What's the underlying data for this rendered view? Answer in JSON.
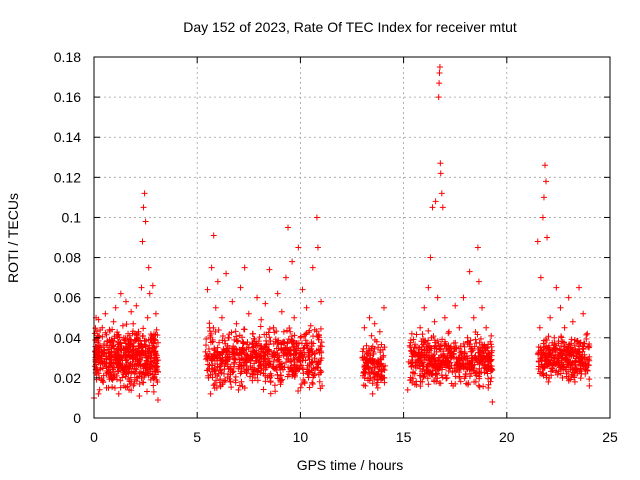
{
  "chart_data": {
    "type": "scatter",
    "title": "Day 152 of 2023, Rate Of TEC Index for receiver mtut",
    "xlabel": "GPS time / hours",
    "ylabel": "ROTI / TECUs",
    "xlim": [
      0,
      25
    ],
    "ylim": [
      0,
      0.18
    ],
    "xticks": [
      0,
      5,
      10,
      15,
      20,
      25
    ],
    "yticks": [
      0,
      0.02,
      0.04,
      0.06,
      0.08,
      0.1,
      0.12,
      0.14,
      0.16,
      0.18
    ],
    "xtick_labels": [
      "0",
      "5",
      "10",
      "15",
      "20",
      "25"
    ],
    "ytick_labels": [
      "0",
      "0.02",
      "0.04",
      "0.06",
      "0.08",
      "0.1",
      "0.12",
      "0.14",
      "0.16",
      "0.18"
    ],
    "grid": true,
    "marker": "+",
    "color": "#ff0000",
    "series": [
      {
        "points": [
          [
            0.0,
            0.01
          ],
          [
            0.05,
            0.033
          ],
          [
            0.1,
            0.05
          ],
          [
            0.15,
            0.024
          ],
          [
            0.2,
            0.041
          ],
          [
            0.25,
            0.02
          ],
          [
            0.3,
            0.036
          ],
          [
            0.35,
            0.028
          ],
          [
            0.4,
            0.045
          ],
          [
            0.45,
            0.018
          ],
          [
            0.5,
            0.032
          ],
          [
            0.55,
            0.052
          ],
          [
            0.6,
            0.022
          ],
          [
            0.65,
            0.038
          ],
          [
            0.7,
            0.015
          ],
          [
            0.75,
            0.044
          ],
          [
            0.8,
            0.027
          ],
          [
            0.85,
            0.035
          ],
          [
            0.9,
            0.019
          ],
          [
            0.95,
            0.048
          ],
          [
            1.0,
            0.03
          ],
          [
            1.05,
            0.055
          ],
          [
            1.1,
            0.021
          ],
          [
            1.15,
            0.04
          ],
          [
            1.2,
            0.012
          ],
          [
            1.25,
            0.037
          ],
          [
            1.3,
            0.062
          ],
          [
            1.35,
            0.025
          ],
          [
            1.4,
            0.046
          ],
          [
            1.45,
            0.016
          ],
          [
            1.5,
            0.034
          ],
          [
            1.55,
            0.058
          ],
          [
            1.6,
            0.023
          ],
          [
            1.65,
            0.042
          ],
          [
            1.7,
            0.014
          ],
          [
            1.75,
            0.039
          ],
          [
            1.8,
            0.053
          ],
          [
            1.85,
            0.026
          ],
          [
            1.9,
            0.047
          ],
          [
            1.95,
            0.017
          ],
          [
            2.0,
            0.031
          ],
          [
            2.05,
            0.056
          ],
          [
            2.1,
            0.02
          ],
          [
            2.15,
            0.043
          ],
          [
            2.2,
            0.011
          ],
          [
            2.25,
            0.036
          ],
          [
            2.3,
            0.065
          ],
          [
            2.35,
            0.088
          ],
          [
            2.4,
            0.105
          ],
          [
            2.45,
            0.112
          ],
          [
            2.5,
            0.098
          ],
          [
            2.55,
            0.028
          ],
          [
            2.6,
            0.05
          ],
          [
            2.65,
            0.075
          ],
          [
            2.7,
            0.062
          ],
          [
            2.75,
            0.019
          ],
          [
            2.8,
            0.041
          ],
          [
            2.85,
            0.066
          ],
          [
            2.9,
            0.013
          ],
          [
            2.95,
            0.033
          ],
          [
            3.0,
            0.052
          ],
          [
            3.05,
            0.024
          ],
          [
            3.1,
            0.009
          ],
          [
            5.4,
            0.033
          ],
          [
            5.5,
            0.064
          ],
          [
            5.55,
            0.02
          ],
          [
            5.6,
            0.045
          ],
          [
            5.65,
            0.012
          ],
          [
            5.7,
            0.075
          ],
          [
            5.75,
            0.038
          ],
          [
            5.8,
            0.091
          ],
          [
            5.85,
            0.025
          ],
          [
            5.9,
            0.055
          ],
          [
            5.95,
            0.015
          ],
          [
            6.0,
            0.068
          ],
          [
            6.1,
            0.03
          ],
          [
            6.2,
            0.05
          ],
          [
            6.3,
            0.022
          ],
          [
            6.4,
            0.072
          ],
          [
            6.5,
            0.04
          ],
          [
            6.6,
            0.018
          ],
          [
            6.7,
            0.058
          ],
          [
            6.8,
            0.027
          ],
          [
            6.9,
            0.047
          ],
          [
            7.0,
            0.014
          ],
          [
            7.1,
            0.065
          ],
          [
            7.2,
            0.035
          ],
          [
            7.3,
            0.075
          ],
          [
            7.4,
            0.024
          ],
          [
            7.5,
            0.052
          ],
          [
            7.6,
            0.03
          ],
          [
            7.7,
            0.042
          ],
          [
            7.8,
            0.02
          ],
          [
            7.9,
            0.06
          ],
          [
            8.0,
            0.036
          ],
          [
            8.1,
            0.049
          ],
          [
            8.2,
            0.026
          ],
          [
            8.3,
            0.057
          ],
          [
            8.4,
            0.032
          ],
          [
            8.5,
            0.074
          ],
          [
            8.6,
            0.021
          ],
          [
            8.7,
            0.045
          ],
          [
            8.8,
            0.038
          ],
          [
            8.9,
            0.062
          ],
          [
            9.0,
            0.028
          ],
          [
            9.1,
            0.053
          ],
          [
            9.2,
            0.043
          ],
          [
            9.3,
            0.07
          ],
          [
            9.4,
            0.095
          ],
          [
            9.5,
            0.034
          ],
          [
            9.6,
            0.078
          ],
          [
            9.7,
            0.05
          ],
          [
            9.8,
            0.025
          ],
          [
            9.9,
            0.085
          ],
          [
            10.0,
            0.04
          ],
          [
            10.1,
            0.064
          ],
          [
            10.2,
            0.018
          ],
          [
            10.3,
            0.055
          ],
          [
            10.4,
            0.031
          ],
          [
            10.5,
            0.046
          ],
          [
            10.6,
            0.075
          ],
          [
            10.7,
            0.022
          ],
          [
            10.8,
            0.1
          ],
          [
            10.85,
            0.085
          ],
          [
            10.9,
            0.041
          ],
          [
            11.0,
            0.058
          ],
          [
            11.05,
            0.016
          ],
          [
            13.0,
            0.03
          ],
          [
            13.1,
            0.045
          ],
          [
            13.15,
            0.016
          ],
          [
            13.2,
            0.036
          ],
          [
            13.3,
            0.025
          ],
          [
            13.35,
            0.05
          ],
          [
            13.4,
            0.02
          ],
          [
            13.45,
            0.041
          ],
          [
            13.5,
            0.012
          ],
          [
            13.55,
            0.032
          ],
          [
            13.6,
            0.047
          ],
          [
            13.65,
            0.022
          ],
          [
            13.7,
            0.038
          ],
          [
            13.75,
            0.015
          ],
          [
            13.8,
            0.028
          ],
          [
            13.85,
            0.043
          ],
          [
            13.9,
            0.019
          ],
          [
            14.0,
            0.034
          ],
          [
            14.05,
            0.055
          ],
          [
            14.1,
            0.026
          ],
          [
            15.2,
            0.014
          ],
          [
            15.25,
            0.028
          ],
          [
            15.3,
            0.036
          ],
          [
            15.35,
            0.019
          ],
          [
            15.4,
            0.042
          ],
          [
            15.6,
            0.025
          ],
          [
            15.7,
            0.035
          ],
          [
            15.8,
            0.045
          ],
          [
            15.9,
            0.018
          ],
          [
            16.0,
            0.055
          ],
          [
            16.1,
            0.03
          ],
          [
            16.2,
            0.065
          ],
          [
            16.25,
            0.022
          ],
          [
            16.3,
            0.08
          ],
          [
            16.35,
            0.04
          ],
          [
            16.4,
            0.105
          ],
          [
            16.45,
            0.026
          ],
          [
            16.5,
            0.048
          ],
          [
            16.55,
            0.108
          ],
          [
            16.6,
            0.033
          ],
          [
            16.65,
            0.06
          ],
          [
            16.7,
            0.16
          ],
          [
            16.72,
            0.167
          ],
          [
            16.74,
            0.172
          ],
          [
            16.76,
            0.175
          ],
          [
            16.78,
            0.127
          ],
          [
            16.8,
            0.122
          ],
          [
            16.85,
            0.112
          ],
          [
            16.9,
            0.105
          ],
          [
            16.95,
            0.028
          ],
          [
            17.0,
            0.05
          ],
          [
            17.1,
            0.02
          ],
          [
            17.2,
            0.043
          ],
          [
            17.3,
            0.035
          ],
          [
            17.4,
            0.016
          ],
          [
            17.5,
            0.056
          ],
          [
            17.6,
            0.026
          ],
          [
            17.7,
            0.045
          ],
          [
            17.8,
            0.032
          ],
          [
            17.9,
            0.06
          ],
          [
            18.0,
            0.022
          ],
          [
            18.1,
            0.04
          ],
          [
            18.2,
            0.073
          ],
          [
            18.3,
            0.03
          ],
          [
            18.4,
            0.05
          ],
          [
            18.5,
            0.018
          ],
          [
            18.6,
            0.085
          ],
          [
            18.65,
            0.068
          ],
          [
            18.7,
            0.035
          ],
          [
            18.8,
            0.055
          ],
          [
            18.9,
            0.025
          ],
          [
            19.0,
            0.045
          ],
          [
            19.1,
            0.015
          ],
          [
            19.2,
            0.038
          ],
          [
            19.25,
            0.02
          ],
          [
            19.3,
            0.008
          ],
          [
            21.5,
            0.088
          ],
          [
            21.55,
            0.028
          ],
          [
            21.6,
            0.045
          ],
          [
            21.65,
            0.07
          ],
          [
            21.7,
            0.022
          ],
          [
            21.75,
            0.1
          ],
          [
            21.8,
            0.11
          ],
          [
            21.85,
            0.126
          ],
          [
            21.9,
            0.118
          ],
          [
            21.95,
            0.09
          ],
          [
            22.0,
            0.035
          ],
          [
            22.1,
            0.05
          ],
          [
            22.2,
            0.025
          ],
          [
            22.3,
            0.04
          ],
          [
            22.4,
            0.065
          ],
          [
            22.5,
            0.03
          ],
          [
            22.6,
            0.055
          ],
          [
            22.7,
            0.02
          ],
          [
            22.8,
            0.045
          ],
          [
            22.9,
            0.033
          ],
          [
            23.0,
            0.06
          ],
          [
            23.1,
            0.025
          ],
          [
            23.2,
            0.048
          ],
          [
            23.3,
            0.018
          ],
          [
            23.4,
            0.038
          ],
          [
            23.5,
            0.065
          ],
          [
            23.6,
            0.028
          ],
          [
            23.7,
            0.052
          ],
          [
            23.8,
            0.022
          ],
          [
            23.9,
            0.042
          ],
          [
            24.0,
            0.016
          ]
        ]
      }
    ],
    "dense_clusters": [
      {
        "x_range": [
          0,
          3.1
        ],
        "y_range": [
          0.01,
          0.05
        ],
        "n": 520,
        "seed": 11
      },
      {
        "x_range": [
          5.4,
          11.05
        ],
        "y_range": [
          0.01,
          0.05
        ],
        "n": 650,
        "seed": 23
      },
      {
        "x_range": [
          13.0,
          14.1
        ],
        "y_range": [
          0.012,
          0.04
        ],
        "n": 120,
        "seed": 37
      },
      {
        "x_range": [
          15.3,
          19.3
        ],
        "y_range": [
          0.012,
          0.045
        ],
        "n": 480,
        "seed": 41
      },
      {
        "x_range": [
          21.5,
          24.0
        ],
        "y_range": [
          0.015,
          0.045
        ],
        "n": 320,
        "seed": 53
      }
    ]
  }
}
